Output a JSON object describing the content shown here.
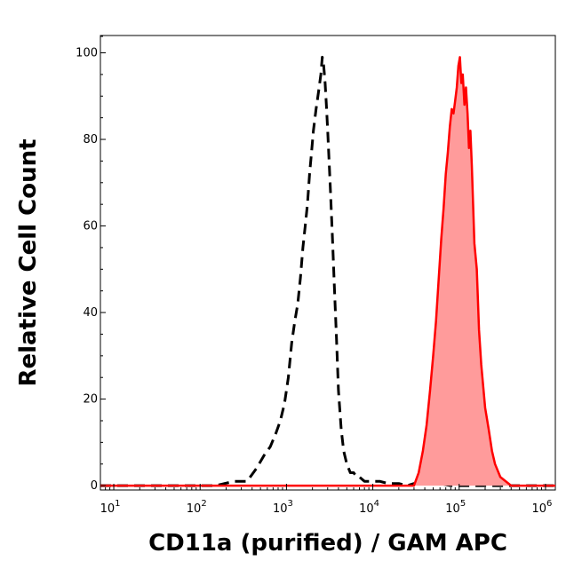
{
  "chart_data": {
    "type": "area",
    "title": "",
    "xlabel": "CD11a (purified) / GAM APC",
    "ylabel": "Relative Cell Count",
    "x_scale": "log",
    "xlim": [
      7,
      1300000
    ],
    "ylim": [
      -1,
      104
    ],
    "x_ticks": [
      {
        "value": 10,
        "base": "10",
        "exp": "1"
      },
      {
        "value": 100,
        "base": "10",
        "exp": "2"
      },
      {
        "value": 1000,
        "base": "10",
        "exp": "3"
      },
      {
        "value": 10000,
        "base": "10",
        "exp": "4"
      },
      {
        "value": 100000,
        "base": "10",
        "exp": "5"
      },
      {
        "value": 1000000,
        "base": "10",
        "exp": "6"
      }
    ],
    "y_ticks": [
      "0",
      "20",
      "40",
      "60",
      "80",
      "100"
    ],
    "grid": false,
    "legend": "none",
    "series": [
      {
        "style": "dashed",
        "color": "#000000",
        "x": [
          7,
          150,
          250,
          350,
          450,
          550,
          650,
          750,
          850,
          950,
          1050,
          1150,
          1250,
          1350,
          1450,
          1550,
          1650,
          1750,
          1850,
          1950,
          2050,
          2200,
          2350,
          2500,
          2600,
          2700,
          2800,
          2900,
          3000,
          3200,
          3400,
          3600,
          3800,
          4000,
          4300,
          4600,
          5000,
          5500,
          6000,
          6500,
          7000,
          8000,
          9000,
          10000,
          12000,
          15000,
          20000,
          25000,
          30000,
          40000,
          60000,
          80000,
          100000,
          1300000
        ],
        "y": [
          0,
          0,
          1,
          1,
          4,
          7,
          9,
          12,
          15,
          19,
          25,
          33,
          38,
          42,
          48,
          55,
          60,
          65,
          72,
          77,
          82,
          87,
          91,
          95,
          99,
          97,
          93,
          88,
          82,
          70,
          58,
          45,
          34,
          22,
          13,
          8,
          5,
          3,
          3,
          2,
          2,
          1,
          1,
          1,
          1,
          0.5,
          0.5,
          0,
          0.5,
          0.5,
          0.5,
          0,
          0,
          0
        ]
      },
      {
        "style": "filled",
        "color": "#ff0000",
        "fill": "#ff9b9b",
        "x": [
          7,
          30000,
          34000,
          38000,
          42000,
          46000,
          50000,
          54000,
          58000,
          62000,
          66000,
          70000,
          74000,
          78000,
          82000,
          86000,
          90000,
          94000,
          98000,
          102000,
          106000,
          110000,
          115000,
          120000,
          125000,
          130000,
          135000,
          140000,
          150000,
          160000,
          170000,
          180000,
          200000,
          220000,
          240000,
          260000,
          300000,
          400000,
          1300000
        ],
        "y": [
          0,
          0,
          3,
          8,
          14,
          22,
          30,
          38,
          48,
          57,
          64,
          72,
          77,
          83,
          87,
          86,
          89,
          92,
          97,
          99,
          93,
          95,
          88,
          92,
          86,
          78,
          82,
          74,
          56,
          50,
          36,
          28,
          18,
          13,
          8,
          5,
          2,
          0,
          0
        ]
      }
    ]
  }
}
